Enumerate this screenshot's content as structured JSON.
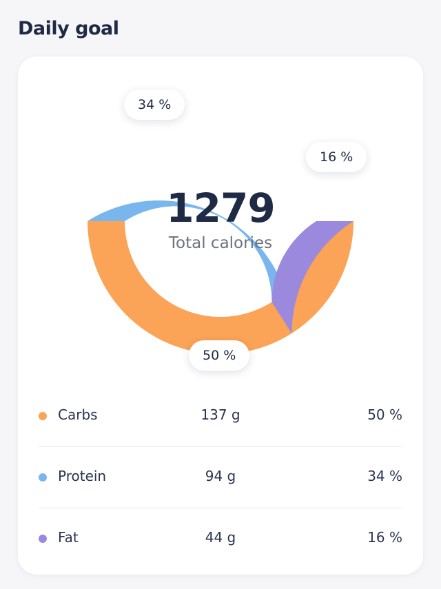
{
  "header": {
    "title": "Daily goal"
  },
  "summary": {
    "total": "1279",
    "total_label": "Total calories"
  },
  "colors": {
    "carbs": "#fba356",
    "protein": "#79b6ee",
    "fat": "#9a89dc"
  },
  "chart_data": {
    "type": "pie",
    "donut": true,
    "categories": [
      "Carbs",
      "Protein",
      "Fat"
    ],
    "values": [
      50,
      34,
      16
    ],
    "data_labels": [
      "50 %",
      "34 %",
      "16 %"
    ],
    "colors": [
      "#fba356",
      "#79b6ee",
      "#9a89dc"
    ]
  },
  "macros": [
    {
      "name": "Carbs",
      "grams": "137 g",
      "percent": "50 %",
      "color": "#fba356"
    },
    {
      "name": "Protein",
      "grams": "94 g",
      "percent": "34 %",
      "color": "#79b6ee"
    },
    {
      "name": "Fat",
      "grams": "44 g",
      "percent": "16 %",
      "color": "#9a89dc"
    }
  ]
}
